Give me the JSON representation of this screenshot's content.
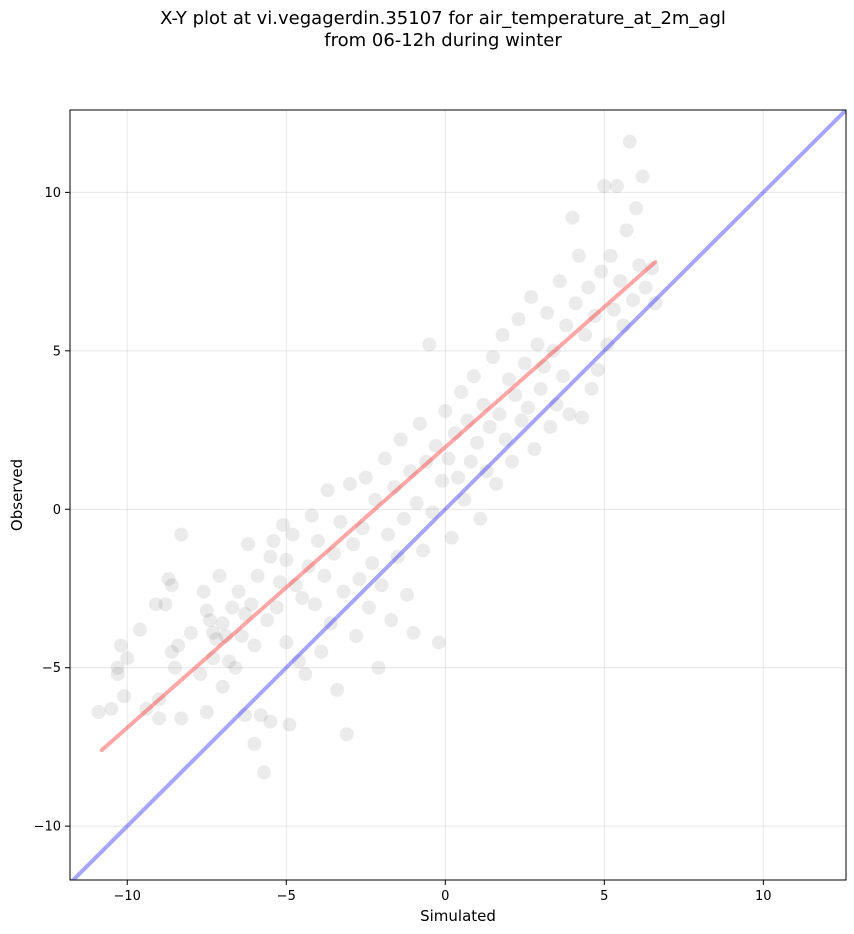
{
  "chart_data": {
    "type": "scatter",
    "title": "X-Y plot at vi.vegagerdin.35107 for air_temperature_at_2m_agl",
    "subtitle": "from 06-12h during winter",
    "xlabel": "Simulated",
    "ylabel": "Observed",
    "xlim": [
      -11.8,
      12.6
    ],
    "ylim": [
      -11.7,
      12.6
    ],
    "x_ticks": [
      -10,
      -5,
      0,
      5,
      10
    ],
    "y_ticks": [
      -10,
      -5,
      0,
      5,
      10
    ],
    "x_tick_labels": [
      "−10",
      "−5",
      "0",
      "5",
      "10"
    ],
    "y_tick_labels": [
      "−10",
      "−5",
      "0",
      "5",
      "10"
    ],
    "grid": true,
    "point_color": "#000000",
    "point_alpha": 0.08,
    "series": [
      {
        "type": "scatter",
        "color": "#000000",
        "points": [
          [
            -10.9,
            -6.4
          ],
          [
            -10.5,
            -6.3
          ],
          [
            -10.3,
            -5.0
          ],
          [
            -10.3,
            -5.2
          ],
          [
            -10.2,
            -4.3
          ],
          [
            -10.1,
            -5.9
          ],
          [
            -10.0,
            -4.7
          ],
          [
            -9.6,
            -3.8
          ],
          [
            -9.4,
            -6.3
          ],
          [
            -9.1,
            -3.0
          ],
          [
            -9.0,
            -6.6
          ],
          [
            -9.0,
            -6.0
          ],
          [
            -8.8,
            -3.0
          ],
          [
            -8.7,
            -2.2
          ],
          [
            -8.6,
            -2.4
          ],
          [
            -8.6,
            -4.5
          ],
          [
            -8.5,
            -5.0
          ],
          [
            -8.4,
            -4.3
          ],
          [
            -8.3,
            -0.8
          ],
          [
            -8.3,
            -6.6
          ],
          [
            -8.0,
            -3.9
          ],
          [
            -7.7,
            -5.2
          ],
          [
            -7.6,
            -2.6
          ],
          [
            -7.5,
            -3.2
          ],
          [
            -7.5,
            -6.4
          ],
          [
            -7.4,
            -3.5
          ],
          [
            -7.3,
            -4.7
          ],
          [
            -7.3,
            -3.9
          ],
          [
            -7.2,
            -4.1
          ],
          [
            -7.1,
            -2.1
          ],
          [
            -7.0,
            -5.6
          ],
          [
            -7.0,
            -3.6
          ],
          [
            -6.9,
            -4.0
          ],
          [
            -6.8,
            -4.8
          ],
          [
            -6.7,
            -3.1
          ],
          [
            -6.6,
            -5.0
          ],
          [
            -6.5,
            -2.6
          ],
          [
            -6.4,
            -4.0
          ],
          [
            -6.3,
            -6.5
          ],
          [
            -6.3,
            -3.3
          ],
          [
            -6.2,
            -1.1
          ],
          [
            -6.1,
            -3.0
          ],
          [
            -6.0,
            -7.4
          ],
          [
            -6.0,
            -4.3
          ],
          [
            -5.9,
            -2.1
          ],
          [
            -5.8,
            -6.5
          ],
          [
            -5.7,
            -8.3
          ],
          [
            -5.6,
            -3.5
          ],
          [
            -5.5,
            -1.5
          ],
          [
            -5.5,
            -6.7
          ],
          [
            -5.4,
            -1.0
          ],
          [
            -5.3,
            -3.1
          ],
          [
            -5.2,
            -2.3
          ],
          [
            -5.1,
            -0.5
          ],
          [
            -5.0,
            -1.6
          ],
          [
            -5.0,
            -4.2
          ],
          [
            -4.9,
            -6.8
          ],
          [
            -4.8,
            -0.8
          ],
          [
            -4.7,
            -2.4
          ],
          [
            -4.6,
            -4.8
          ],
          [
            -4.5,
            -2.8
          ],
          [
            -4.4,
            -5.2
          ],
          [
            -4.3,
            -1.8
          ],
          [
            -4.2,
            -0.2
          ],
          [
            -4.1,
            -3.0
          ],
          [
            -4.0,
            -1.0
          ],
          [
            -3.9,
            -4.5
          ],
          [
            -3.8,
            -2.1
          ],
          [
            -3.7,
            0.6
          ],
          [
            -3.6,
            -3.6
          ],
          [
            -3.5,
            -1.4
          ],
          [
            -3.4,
            -5.7
          ],
          [
            -3.3,
            -0.4
          ],
          [
            -3.2,
            -2.6
          ],
          [
            -3.1,
            -7.1
          ],
          [
            -3.0,
            0.8
          ],
          [
            -2.9,
            -1.1
          ],
          [
            -2.8,
            -4.0
          ],
          [
            -2.7,
            -2.2
          ],
          [
            -2.6,
            -0.6
          ],
          [
            -2.5,
            1.0
          ],
          [
            -2.4,
            -3.1
          ],
          [
            -2.3,
            -1.7
          ],
          [
            -2.2,
            0.3
          ],
          [
            -2.1,
            -5.0
          ],
          [
            -2.0,
            -2.4
          ],
          [
            -1.9,
            1.6
          ],
          [
            -1.8,
            -0.8
          ],
          [
            -1.7,
            -3.5
          ],
          [
            -1.6,
            0.7
          ],
          [
            -1.5,
            -1.5
          ],
          [
            -1.4,
            2.2
          ],
          [
            -1.3,
            -0.3
          ],
          [
            -1.2,
            -2.7
          ],
          [
            -1.1,
            1.2
          ],
          [
            -1.0,
            -3.9
          ],
          [
            -0.9,
            0.2
          ],
          [
            -0.8,
            2.7
          ],
          [
            -0.7,
            -1.3
          ],
          [
            -0.6,
            1.5
          ],
          [
            -0.5,
            5.2
          ],
          [
            -0.4,
            -0.1
          ],
          [
            -0.3,
            2.0
          ],
          [
            -0.2,
            -4.2
          ],
          [
            -0.1,
            0.9
          ],
          [
            0.0,
            3.1
          ],
          [
            0.1,
            1.6
          ],
          [
            0.2,
            -0.9
          ],
          [
            0.3,
            2.4
          ],
          [
            0.4,
            1.0
          ],
          [
            0.5,
            3.7
          ],
          [
            0.6,
            0.3
          ],
          [
            0.7,
            2.8
          ],
          [
            0.8,
            1.5
          ],
          [
            0.9,
            4.2
          ],
          [
            1.0,
            2.1
          ],
          [
            1.1,
            -0.3
          ],
          [
            1.2,
            3.3
          ],
          [
            1.3,
            1.2
          ],
          [
            1.4,
            2.6
          ],
          [
            1.5,
            4.8
          ],
          [
            1.6,
            0.8
          ],
          [
            1.7,
            3.0
          ],
          [
            1.8,
            5.5
          ],
          [
            1.9,
            2.2
          ],
          [
            2.0,
            4.1
          ],
          [
            2.1,
            1.5
          ],
          [
            2.2,
            3.6
          ],
          [
            2.3,
            6.0
          ],
          [
            2.4,
            2.8
          ],
          [
            2.5,
            4.6
          ],
          [
            2.6,
            3.2
          ],
          [
            2.7,
            6.7
          ],
          [
            2.8,
            1.9
          ],
          [
            2.9,
            5.2
          ],
          [
            3.0,
            3.8
          ],
          [
            3.1,
            4.5
          ],
          [
            3.2,
            6.2
          ],
          [
            3.3,
            2.6
          ],
          [
            3.4,
            5.0
          ],
          [
            3.5,
            3.3
          ],
          [
            3.6,
            7.2
          ],
          [
            3.7,
            4.2
          ],
          [
            3.8,
            5.8
          ],
          [
            3.9,
            3.0
          ],
          [
            4.0,
            9.2
          ],
          [
            4.1,
            6.5
          ],
          [
            4.2,
            8.0
          ],
          [
            4.3,
            2.9
          ],
          [
            4.4,
            5.5
          ],
          [
            4.5,
            7.0
          ],
          [
            4.6,
            3.8
          ],
          [
            4.7,
            6.1
          ],
          [
            4.8,
            4.4
          ],
          [
            4.9,
            7.5
          ],
          [
            5.0,
            10.2
          ],
          [
            5.1,
            5.2
          ],
          [
            5.2,
            8.0
          ],
          [
            5.3,
            6.3
          ],
          [
            5.4,
            10.2
          ],
          [
            5.5,
            7.2
          ],
          [
            5.6,
            5.8
          ],
          [
            5.7,
            8.8
          ],
          [
            5.8,
            11.6
          ],
          [
            5.9,
            6.6
          ],
          [
            6.0,
            9.5
          ],
          [
            6.1,
            7.7
          ],
          [
            6.2,
            10.5
          ],
          [
            6.3,
            7.0
          ],
          [
            6.5,
            7.6
          ],
          [
            6.6,
            6.5
          ]
        ]
      },
      {
        "type": "line",
        "color": "#ff0000",
        "alpha": 0.35,
        "points": [
          [
            -10.8,
            -7.6
          ],
          [
            6.6,
            7.8
          ]
        ]
      },
      {
        "type": "line",
        "color": "#0000ff",
        "alpha": 0.35,
        "points": [
          [
            -11.8,
            -11.8
          ],
          [
            12.6,
            12.6
          ]
        ]
      }
    ]
  }
}
